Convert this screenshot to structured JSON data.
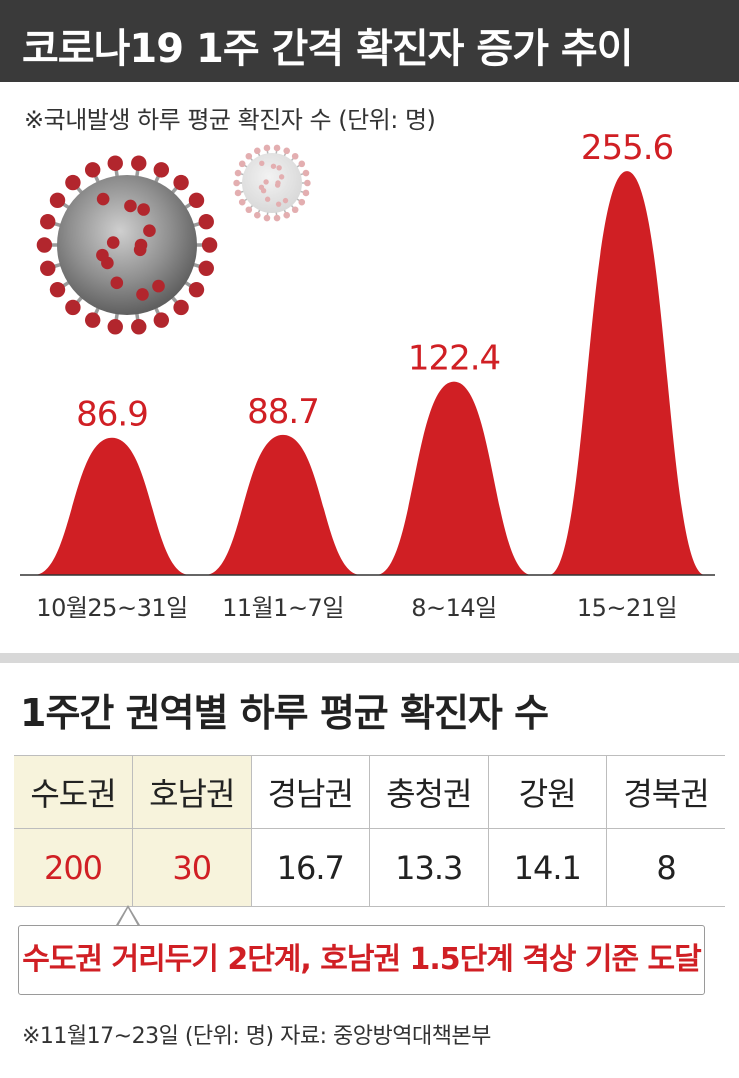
{
  "header": {
    "title": "코로나19 1주 간격 확진자 증가 추이"
  },
  "chart_data": {
    "type": "area",
    "subtitle": "※국내발생 하루 평균 확진자 수 (단위: 명)",
    "categories": [
      "10월25~31일",
      "11월1~7일",
      "8~14일",
      "15~21일"
    ],
    "values": [
      86.9,
      88.7,
      122.4,
      255.6
    ],
    "value_labels": [
      "86.9",
      "88.7",
      "122.4",
      "255.6"
    ],
    "color": "#d01f24",
    "grid": false,
    "legend": "none"
  },
  "table": {
    "title": "1주간 권역별 하루 평균 확진자 수",
    "headers": [
      "수도권",
      "호남권",
      "경남권",
      "충청권",
      "강원",
      "경북권"
    ],
    "values": [
      "200",
      "30",
      "16.7",
      "13.3",
      "14.1",
      "8"
    ],
    "highlight_color": "#f7f3dc"
  },
  "callout": {
    "text": "수도권 거리두기 2단계, 호남권 1.5단계 격상 기준 도달"
  },
  "footnote": "※11월17~23일 (단위: 명) 자료: 중앙방역대책본부"
}
